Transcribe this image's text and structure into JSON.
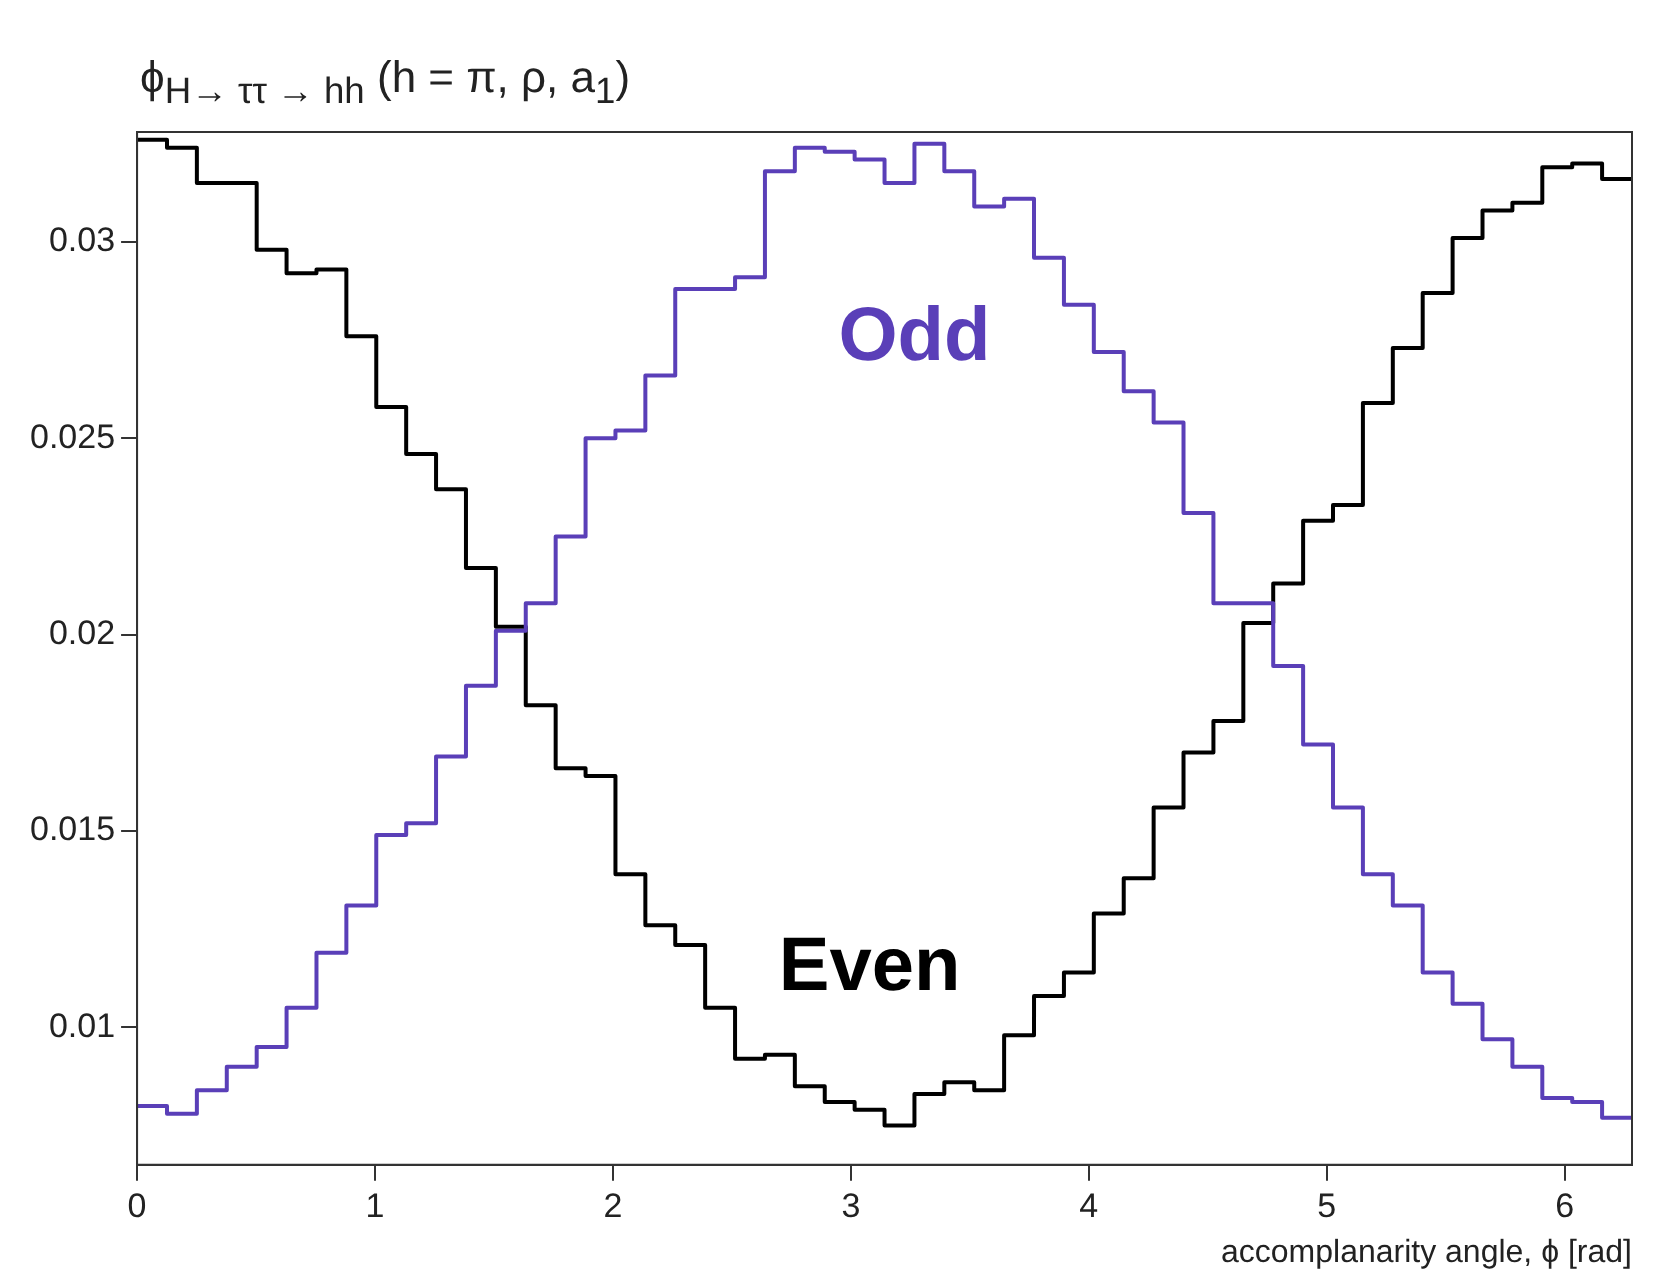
{
  "chart_data": {
    "type": "histogram",
    "title": "ϕ$_{H→ ττ → hh}$ (h = π, ρ, a$_{1}$)",
    "xlabel": "accomplanarity angle, ϕ [rad]",
    "bins": [
      0,
      0.1257,
      0.2513,
      0.377,
      0.5027,
      0.6283,
      0.754,
      0.8796,
      1.0053,
      1.131,
      1.2566,
      1.3823,
      1.508,
      1.6336,
      1.7593,
      1.885,
      2.0106,
      2.1363,
      2.2619,
      2.3876,
      2.5133,
      2.6389,
      2.7646,
      2.8903,
      3.0159,
      3.1416,
      3.2673,
      3.3929,
      3.5186,
      3.6442,
      3.7699,
      3.8956,
      4.0212,
      4.1469,
      4.2726,
      4.3982,
      4.5239,
      4.6496,
      4.7752,
      4.9009,
      5.0265,
      5.1522,
      5.2779,
      5.4035,
      5.5292,
      5.6549,
      5.7805,
      5.9062,
      6.0319,
      6.1575,
      6.2832
    ],
    "series": [
      {
        "name": "Odd",
        "color": "#5a3fb8",
        "values": [
          0.008,
          0.0078,
          0.0084,
          0.009,
          0.0095,
          0.0105,
          0.0119,
          0.0131,
          0.0149,
          0.0152,
          0.0169,
          0.0187,
          0.0201,
          0.0208,
          0.0225,
          0.025,
          0.0252,
          0.0266,
          0.0288,
          0.0288,
          0.0291,
          0.0318,
          0.0324,
          0.0323,
          0.0321,
          0.0315,
          0.0325,
          0.0318,
          0.0309,
          0.0311,
          0.0296,
          0.0284,
          0.0272,
          0.0262,
          0.0254,
          0.0231,
          0.0208,
          0.0208,
          0.0192,
          0.0172,
          0.0156,
          0.0139,
          0.0131,
          0.0114,
          0.0106,
          0.0097,
          0.009,
          0.0082,
          0.0081,
          0.0077
        ]
      },
      {
        "name": "Even",
        "color": "#000000",
        "values": [
          0.0326,
          0.0324,
          0.0315,
          0.0315,
          0.0298,
          0.0292,
          0.0293,
          0.0276,
          0.0258,
          0.0246,
          0.0237,
          0.0217,
          0.0202,
          0.0182,
          0.0166,
          0.0164,
          0.0139,
          0.0126,
          0.0121,
          0.0105,
          0.0092,
          0.0093,
          0.0085,
          0.0081,
          0.0079,
          0.0075,
          0.0083,
          0.0086,
          0.0084,
          0.0098,
          0.0108,
          0.0114,
          0.0129,
          0.0138,
          0.0156,
          0.017,
          0.0178,
          0.0203,
          0.0213,
          0.0229,
          0.0233,
          0.0259,
          0.0273,
          0.0287,
          0.0301,
          0.0308,
          0.031,
          0.0319,
          0.032,
          0.0316
        ]
      }
    ],
    "xlim": [
      0,
      6.2832
    ],
    "xticks": [
      0,
      1,
      2,
      3,
      4,
      5,
      6
    ],
    "ylim": [
      0.0065,
      0.0328
    ],
    "yticks": [
      0.01,
      0.015,
      0.02,
      0.025,
      0.03
    ],
    "grid": false,
    "legend": false
  }
}
